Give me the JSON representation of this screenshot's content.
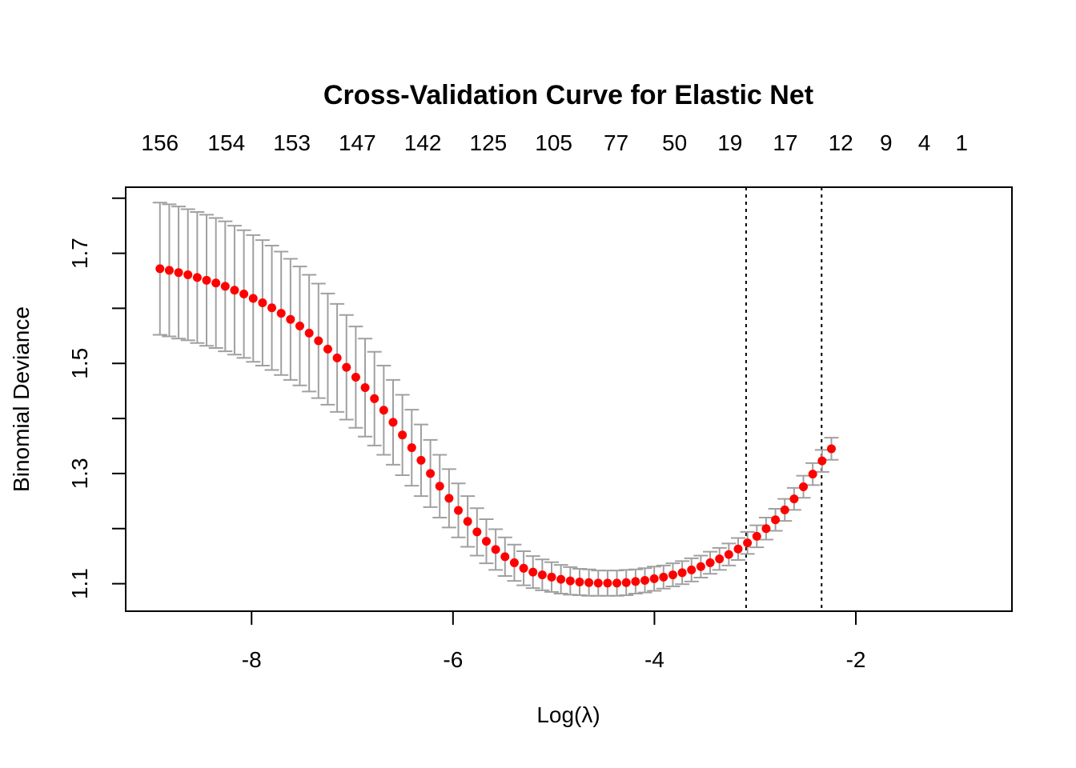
{
  "chart_data": {
    "type": "scatter",
    "title": "Cross-Validation Curve for Elastic Net",
    "xlabel": "Log(λ)",
    "ylabel": "Binomial Deviance",
    "xlim": [
      -9.25,
      -0.45
    ],
    "ylim": [
      1.05,
      1.82
    ],
    "x_ticks": [
      -8,
      -6,
      -4,
      -2
    ],
    "x_tick_labels": [
      "-8",
      "-6",
      "-4",
      "-2"
    ],
    "y_ticks": [
      1.1,
      1.2,
      1.3,
      1.4,
      1.5,
      1.6,
      1.7,
      1.8
    ],
    "y_tick_labels": [
      "1.1",
      "",
      "1.3",
      "",
      "1.5",
      "",
      "1.7",
      ""
    ],
    "top_axis": {
      "x": [
        -8.91,
        -8.25,
        -7.6,
        -6.95,
        -6.3,
        -5.65,
        -5.0,
        -4.38,
        -3.8,
        -3.25,
        -2.7,
        -2.15,
        -1.7,
        -1.32,
        -0.95
      ],
      "labels": [
        "156",
        "154",
        "153",
        "147",
        "142",
        "125",
        "105",
        "77",
        "50",
        "19",
        "17",
        "12",
        "9",
        "4",
        "1"
      ]
    },
    "vlines": [
      -3.09,
      -2.34
    ],
    "point_color": "#ff0000",
    "errorbar_color": "#a0a0a0",
    "series": [
      {
        "x_start": -8.91,
        "x_step": 0.0926,
        "values": [
          1.672,
          1.669,
          1.665,
          1.661,
          1.656,
          1.651,
          1.646,
          1.64,
          1.633,
          1.626,
          1.618,
          1.61,
          1.601,
          1.591,
          1.58,
          1.568,
          1.555,
          1.541,
          1.526,
          1.51,
          1.493,
          1.475,
          1.456,
          1.436,
          1.415,
          1.393,
          1.37,
          1.347,
          1.324,
          1.3,
          1.277,
          1.255,
          1.233,
          1.213,
          1.194,
          1.177,
          1.162,
          1.149,
          1.138,
          1.128,
          1.121,
          1.116,
          1.112,
          1.108,
          1.105,
          1.103,
          1.102,
          1.101,
          1.101,
          1.101,
          1.102,
          1.104,
          1.106,
          1.109,
          1.112,
          1.116,
          1.12,
          1.125,
          1.131,
          1.138,
          1.145,
          1.153,
          1.163,
          1.174,
          1.186,
          1.2,
          1.216,
          1.234,
          1.254,
          1.276,
          1.299,
          1.323,
          1.345
        ],
        "se": [
          0.12,
          0.12,
          0.12,
          0.119,
          0.119,
          0.119,
          0.118,
          0.118,
          0.117,
          0.116,
          0.115,
          0.114,
          0.113,
          0.112,
          0.11,
          0.108,
          0.106,
          0.104,
          0.101,
          0.098,
          0.095,
          0.092,
          0.089,
          0.085,
          0.081,
          0.077,
          0.073,
          0.069,
          0.065,
          0.061,
          0.057,
          0.053,
          0.049,
          0.046,
          0.043,
          0.04,
          0.037,
          0.035,
          0.033,
          0.031,
          0.029,
          0.028,
          0.027,
          0.026,
          0.025,
          0.024,
          0.024,
          0.023,
          0.023,
          0.023,
          0.023,
          0.022,
          0.022,
          0.022,
          0.021,
          0.021,
          0.021,
          0.021,
          0.02,
          0.02,
          0.02,
          0.02,
          0.02,
          0.02,
          0.02,
          0.02,
          0.02,
          0.02,
          0.02,
          0.02,
          0.02,
          0.02,
          0.02
        ]
      }
    ]
  }
}
